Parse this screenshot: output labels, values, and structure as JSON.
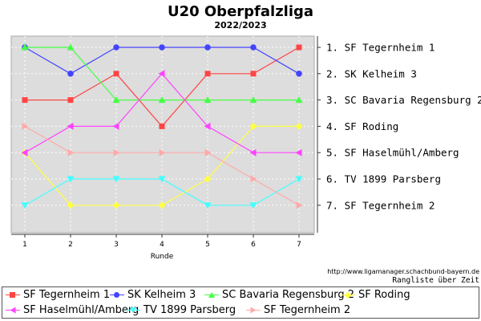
{
  "chart_data": {
    "type": "line",
    "title": "U20 Oberpfalzliga",
    "subtitle": "2022/2023",
    "xlabel": "Runde",
    "ylabel": "",
    "x": [
      1,
      2,
      3,
      4,
      5,
      6,
      7
    ],
    "ylim": [
      1,
      7
    ],
    "y_inverted": true,
    "grid": true,
    "legend_position": "bottom",
    "final_ranking": [
      "1. SF Tegernheim 1",
      "2. SK Kelheim 3",
      "3. SC Bavaria Regensburg 2",
      "4. SF Roding",
      "5. SF Haselmühl/Amberg",
      "6. TV 1899 Parsberg",
      "7. SF Tegernheim 2"
    ],
    "series": [
      {
        "name": "SF Tegernheim 1",
        "color": "#ff4444",
        "marker": "square",
        "values": [
          3,
          3,
          2,
          4,
          2,
          2,
          1
        ]
      },
      {
        "name": "SK Kelheim 3",
        "color": "#4444ff",
        "marker": "circle",
        "values": [
          1,
          2,
          1,
          1,
          1,
          1,
          2
        ]
      },
      {
        "name": "SC Bavaria Regensburg 2",
        "color": "#44ff44",
        "marker": "triangle-up",
        "values": [
          1,
          1,
          3,
          3,
          3,
          3,
          3
        ]
      },
      {
        "name": "SF Roding",
        "color": "#ffff44",
        "marker": "diamond",
        "values": [
          5,
          7,
          7,
          7,
          6,
          4,
          4
        ]
      },
      {
        "name": "SF Haselmühl/Amberg",
        "color": "#ff44ff",
        "marker": "triangle-left",
        "values": [
          5,
          4,
          4,
          2,
          4,
          5,
          5
        ]
      },
      {
        "name": "TV 1899 Parsberg",
        "color": "#44ffff",
        "marker": "triangle-down",
        "values": [
          7,
          6,
          6,
          6,
          7,
          7,
          6
        ]
      },
      {
        "name": "SF Tegernheim 2",
        "color": "#ffaaaa",
        "marker": "triangle-right",
        "values": [
          4,
          5,
          5,
          5,
          5,
          6,
          7
        ]
      }
    ]
  },
  "footer": {
    "source_url": "http://www.ligamanager.schachbund-bayern.de",
    "caption": "Rangliste über Zeit"
  }
}
